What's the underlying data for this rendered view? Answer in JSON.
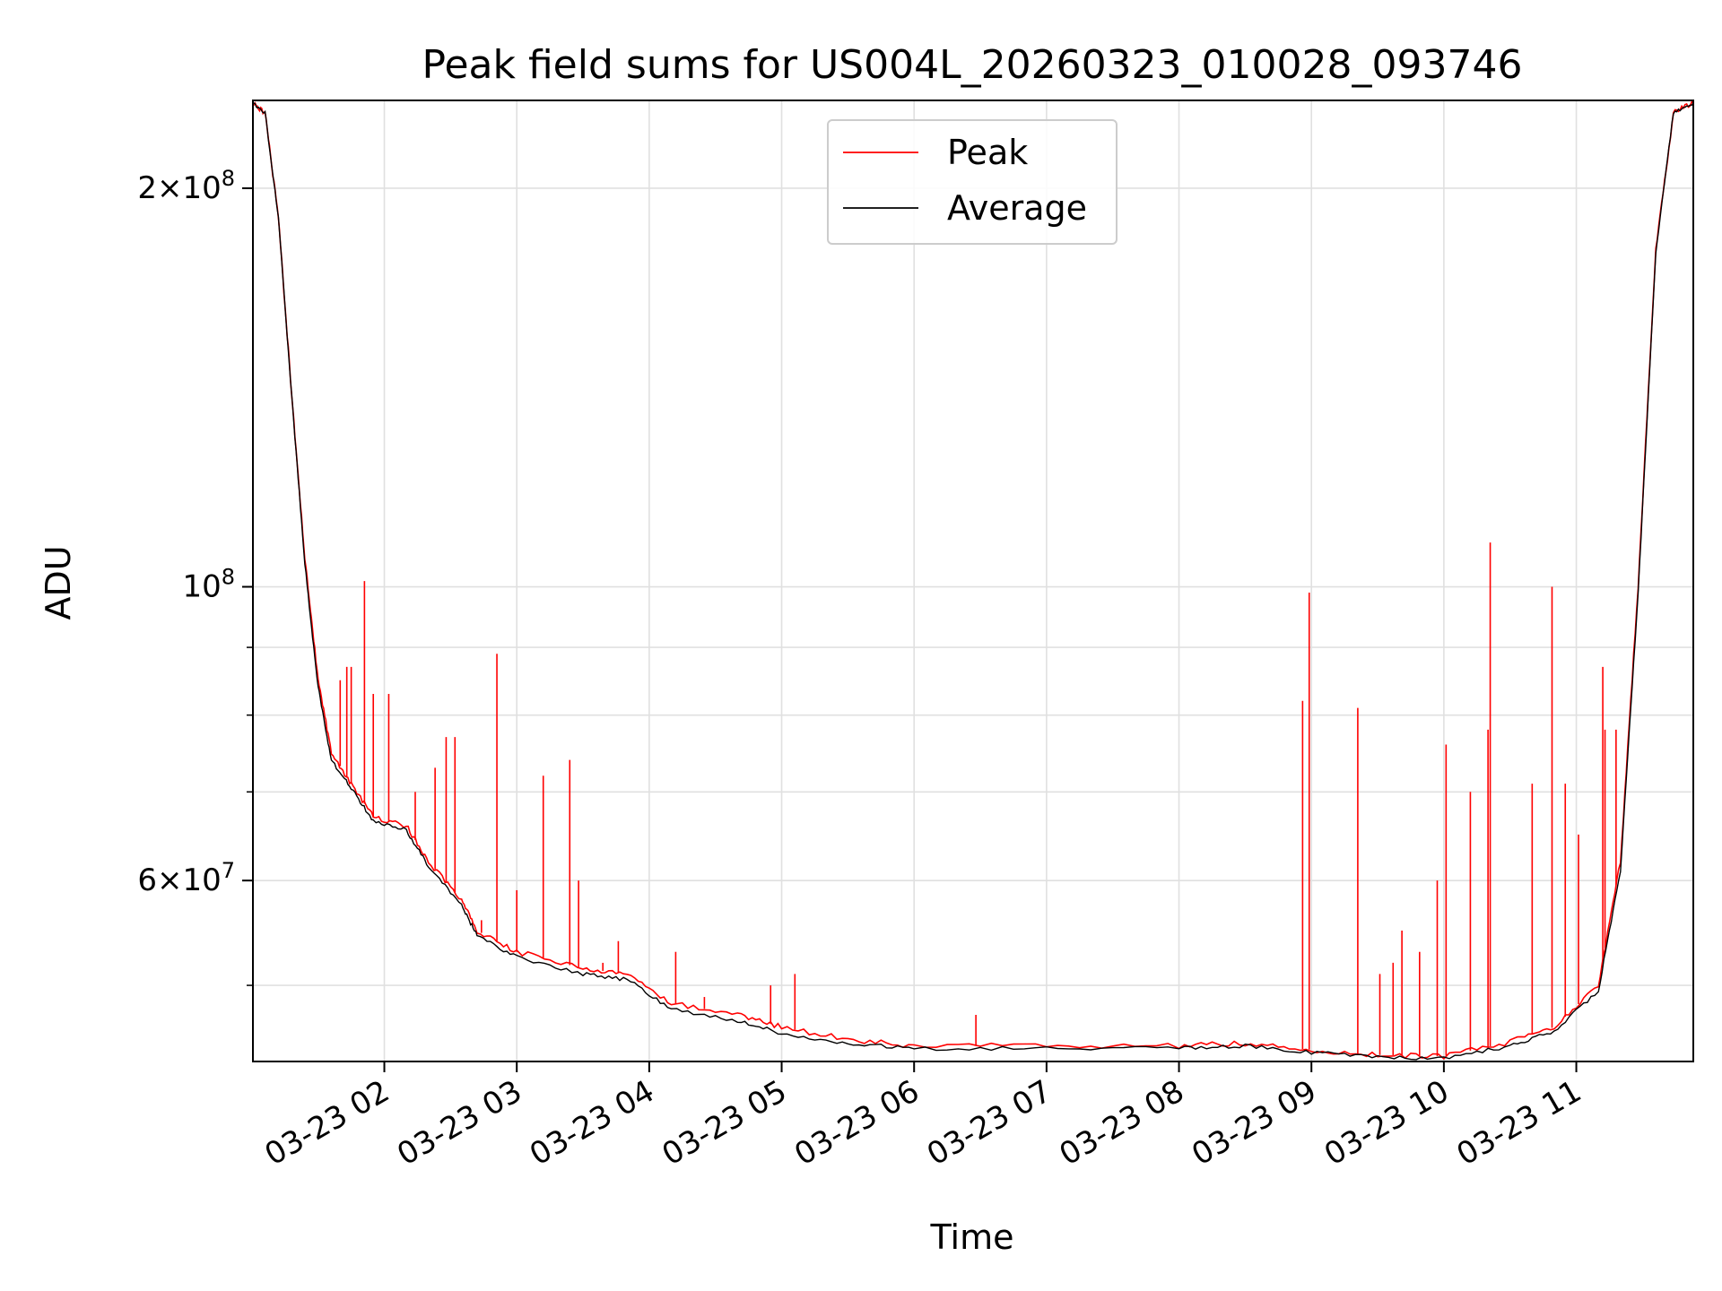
{
  "chart_data": {
    "type": "line",
    "title": "Peak field sums for US004L_20260323_010028_093746",
    "xlabel": "Time",
    "ylabel": "ADU",
    "y_scale": "log",
    "grid": true,
    "legend_position": "top-center",
    "xlim": [
      "2026-03-23 01:00:28",
      "2026-03-23 11:53:00"
    ],
    "ylim": [
      43800000,
      233000000
    ],
    "x_ticks": [
      "03-23 02",
      "03-23 03",
      "03-23 04",
      "03-23 05",
      "03-23 06",
      "03-23 07",
      "03-23 08",
      "03-23 09",
      "03-23 10",
      "03-23 11"
    ],
    "x_tick_times": [
      "2026-03-23 02:00",
      "2026-03-23 03:00",
      "2026-03-23 04:00",
      "2026-03-23 05:00",
      "2026-03-23 06:00",
      "2026-03-23 07:00",
      "2026-03-23 08:00",
      "2026-03-23 09:00",
      "2026-03-23 10:00",
      "2026-03-23 11:00"
    ],
    "y_major_ticks": [
      {
        "value": 200000000,
        "mantissa": "2",
        "exponent": "8"
      },
      {
        "value": 100000000,
        "mantissa": "",
        "exponent": "8"
      },
      {
        "value": 60000000,
        "mantissa": "6",
        "exponent": "7"
      }
    ],
    "y_minor_ticks": [
      50000000,
      70000000,
      80000000,
      90000000
    ],
    "colors": {
      "peak": "#ff0000",
      "average": "#000000",
      "grid": "#e0e0e0"
    },
    "series": [
      {
        "name": "Peak",
        "color": "#ff0000",
        "baseline_points": [
          [
            "2026-03-23 01:00",
            232000000
          ],
          [
            "2026-03-23 01:06",
            228000000
          ],
          [
            "2026-03-23 01:12",
            190000000
          ],
          [
            "2026-03-23 01:18",
            140000000
          ],
          [
            "2026-03-23 01:24",
            105000000
          ],
          [
            "2026-03-23 01:30",
            85000000
          ],
          [
            "2026-03-23 01:36",
            75000000
          ],
          [
            "2026-03-23 01:45",
            71000000
          ],
          [
            "2026-03-23 01:55",
            67000000
          ],
          [
            "2026-03-23 02:10",
            66000000
          ],
          [
            "2026-03-23 02:20",
            62000000
          ],
          [
            "2026-03-23 02:35",
            58000000
          ],
          [
            "2026-03-23 02:42",
            55000000
          ],
          [
            "2026-03-23 03:00",
            53000000
          ],
          [
            "2026-03-23 03:30",
            51500000
          ],
          [
            "2026-03-23 03:50",
            51000000
          ],
          [
            "2026-03-23 04:10",
            48500000
          ],
          [
            "2026-03-23 04:40",
            47500000
          ],
          [
            "2026-03-23 05:00",
            46500000
          ],
          [
            "2026-03-23 05:30",
            45500000
          ],
          [
            "2026-03-23 06:00",
            45000000
          ],
          [
            "2026-03-23 07:00",
            45000000
          ],
          [
            "2026-03-23 08:00",
            45000000
          ],
          [
            "2026-03-23 08:30",
            45200000
          ],
          [
            "2026-03-23 09:00",
            44700000
          ],
          [
            "2026-03-23 09:30",
            44300000
          ],
          [
            "2026-03-23 10:00",
            44200000
          ],
          [
            "2026-03-23 10:30",
            45300000
          ],
          [
            "2026-03-23 10:50",
            46500000
          ],
          [
            "2026-03-23 11:10",
            50000000
          ],
          [
            "2026-03-23 11:20",
            62000000
          ],
          [
            "2026-03-23 11:28",
            100000000
          ],
          [
            "2026-03-23 11:36",
            180000000
          ],
          [
            "2026-03-23 11:44",
            228000000
          ],
          [
            "2026-03-23 11:53",
            232000000
          ]
        ],
        "spikes": [
          [
            "2026-03-23 01:40",
            85000000
          ],
          [
            "2026-03-23 01:43",
            87000000
          ],
          [
            "2026-03-23 01:45",
            87000000
          ],
          [
            "2026-03-23 01:51",
            101000000
          ],
          [
            "2026-03-23 01:55",
            83000000
          ],
          [
            "2026-03-23 02:02",
            83000000
          ],
          [
            "2026-03-23 02:14",
            70000000
          ],
          [
            "2026-03-23 02:23",
            73000000
          ],
          [
            "2026-03-23 02:28",
            77000000
          ],
          [
            "2026-03-23 02:32",
            77000000
          ],
          [
            "2026-03-23 02:44",
            56000000
          ],
          [
            "2026-03-23 02:51",
            89000000
          ],
          [
            "2026-03-23 03:00",
            59000000
          ],
          [
            "2026-03-23 03:12",
            72000000
          ],
          [
            "2026-03-23 03:24",
            74000000
          ],
          [
            "2026-03-23 03:28",
            60000000
          ],
          [
            "2026-03-23 03:39",
            52000000
          ],
          [
            "2026-03-23 03:46",
            54000000
          ],
          [
            "2026-03-23 04:12",
            53000000
          ],
          [
            "2026-03-23 04:25",
            49000000
          ],
          [
            "2026-03-23 04:55",
            50000000
          ],
          [
            "2026-03-23 05:06",
            51000000
          ],
          [
            "2026-03-23 06:28",
            47500000
          ],
          [
            "2026-03-23 08:56",
            82000000
          ],
          [
            "2026-03-23 08:59",
            99000000
          ],
          [
            "2026-03-23 09:21",
            81000000
          ],
          [
            "2026-03-23 09:31",
            51000000
          ],
          [
            "2026-03-23 09:37",
            52000000
          ],
          [
            "2026-03-23 09:41",
            55000000
          ],
          [
            "2026-03-23 09:49",
            53000000
          ],
          [
            "2026-03-23 09:57",
            60000000
          ],
          [
            "2026-03-23 10:01",
            76000000
          ],
          [
            "2026-03-23 10:12",
            70000000
          ],
          [
            "2026-03-23 10:20",
            78000000
          ],
          [
            "2026-03-23 10:21",
            108000000
          ],
          [
            "2026-03-23 10:40",
            71000000
          ],
          [
            "2026-03-23 10:49",
            100000000
          ],
          [
            "2026-03-23 10:55",
            71000000
          ],
          [
            "2026-03-23 11:01",
            65000000
          ],
          [
            "2026-03-23 11:12",
            87000000
          ],
          [
            "2026-03-23 11:13",
            78000000
          ],
          [
            "2026-03-23 11:18",
            78000000
          ]
        ]
      },
      {
        "name": "Average",
        "color": "#000000",
        "baseline_points": [
          [
            "2026-03-23 01:00",
            232000000
          ],
          [
            "2026-03-23 01:06",
            228000000
          ],
          [
            "2026-03-23 01:12",
            190000000
          ],
          [
            "2026-03-23 01:18",
            140000000
          ],
          [
            "2026-03-23 01:24",
            104000000
          ],
          [
            "2026-03-23 01:30",
            84000000
          ],
          [
            "2026-03-23 01:36",
            74000000
          ],
          [
            "2026-03-23 01:45",
            70500000
          ],
          [
            "2026-03-23 01:55",
            66500000
          ],
          [
            "2026-03-23 02:10",
            65500000
          ],
          [
            "2026-03-23 02:20",
            61500000
          ],
          [
            "2026-03-23 02:35",
            57500000
          ],
          [
            "2026-03-23 02:42",
            54500000
          ],
          [
            "2026-03-23 03:00",
            52500000
          ],
          [
            "2026-03-23 03:30",
            51000000
          ],
          [
            "2026-03-23 03:50",
            50500000
          ],
          [
            "2026-03-23 04:10",
            48000000
          ],
          [
            "2026-03-23 04:40",
            47000000
          ],
          [
            "2026-03-23 05:00",
            46000000
          ],
          [
            "2026-03-23 05:30",
            45200000
          ],
          [
            "2026-03-23 06:00",
            44800000
          ],
          [
            "2026-03-23 07:00",
            44800000
          ],
          [
            "2026-03-23 08:00",
            44800000
          ],
          [
            "2026-03-23 08:30",
            45000000
          ],
          [
            "2026-03-23 09:00",
            44500000
          ],
          [
            "2026-03-23 09:30",
            44100000
          ],
          [
            "2026-03-23 10:00",
            44000000
          ],
          [
            "2026-03-23 10:30",
            45000000
          ],
          [
            "2026-03-23 10:50",
            46200000
          ],
          [
            "2026-03-23 11:10",
            49500000
          ],
          [
            "2026-03-23 11:20",
            61000000
          ],
          [
            "2026-03-23 11:28",
            99000000
          ],
          [
            "2026-03-23 11:36",
            179000000
          ],
          [
            "2026-03-23 11:44",
            228000000
          ],
          [
            "2026-03-23 11:53",
            232000000
          ]
        ]
      }
    ]
  }
}
